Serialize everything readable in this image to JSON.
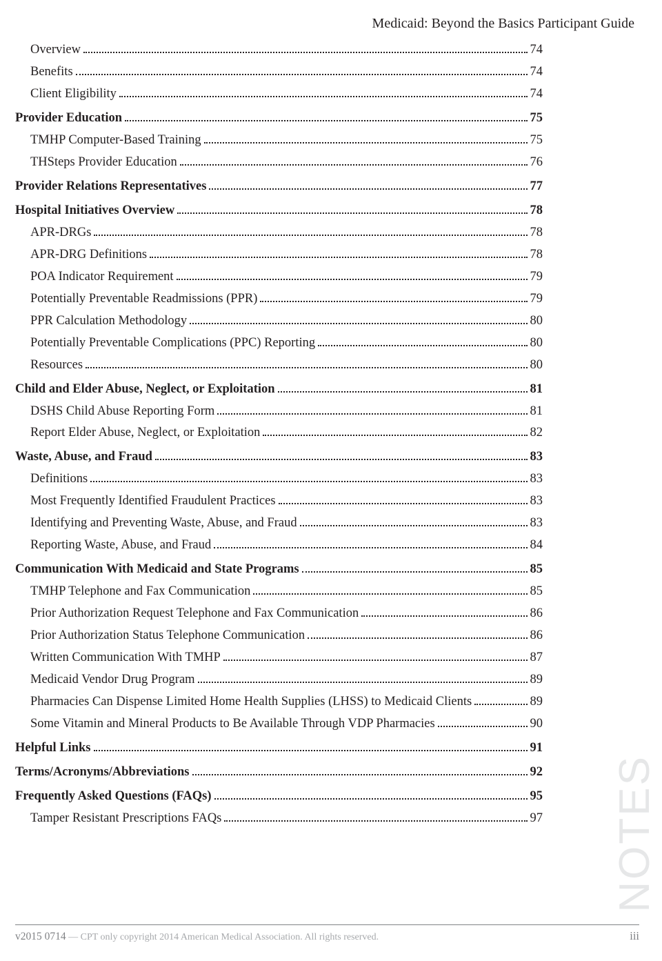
{
  "header_title": "Medicaid: Beyond the Basics Participant Guide",
  "notes_label": "NOTES",
  "footer": {
    "version": "v2015 0714",
    "separator": " — ",
    "copyright": "CPT only copyright 2014 American Medical Association. All rights reserved.",
    "page_num": "iii"
  },
  "toc": [
    {
      "level": 1,
      "label": "Overview",
      "page": "74",
      "group_top": false
    },
    {
      "level": 1,
      "label": "Benefits",
      "page": "74",
      "group_top": false
    },
    {
      "level": 1,
      "label": "Client Eligibility",
      "page": "74",
      "group_top": false
    },
    {
      "level": 0,
      "label": "Provider Education",
      "page": "75",
      "group_top": true
    },
    {
      "level": 1,
      "label": "TMHP Computer-Based Training",
      "page": "75",
      "group_top": false
    },
    {
      "level": 1,
      "label": "THSteps Provider Education",
      "page": "76",
      "group_top": false
    },
    {
      "level": 0,
      "label": "Provider Relations Representatives",
      "page": "77",
      "group_top": true
    },
    {
      "level": 0,
      "label": "Hospital Initiatives Overview",
      "page": "78",
      "group_top": true
    },
    {
      "level": 1,
      "label": "APR-DRGs",
      "page": "78",
      "group_top": false
    },
    {
      "level": 1,
      "label": "APR-DRG Definitions",
      "page": "78",
      "group_top": false
    },
    {
      "level": 1,
      "label": "POA Indicator Requirement",
      "page": "79",
      "group_top": false
    },
    {
      "level": 1,
      "label": "Potentially Preventable Readmissions (PPR)",
      "page": "79",
      "group_top": false
    },
    {
      "level": 1,
      "label": "PPR Calculation Methodology",
      "page": "80",
      "group_top": false
    },
    {
      "level": 1,
      "label": "Potentially Preventable Complications (PPC) Reporting",
      "page": "80",
      "group_top": false
    },
    {
      "level": 1,
      "label": "Resources",
      "page": "80",
      "group_top": false
    },
    {
      "level": 0,
      "label": "Child and Elder Abuse, Neglect, or Exploitation",
      "page": "81",
      "group_top": true
    },
    {
      "level": 1,
      "label": "DSHS Child Abuse Reporting Form",
      "page": "81",
      "group_top": false
    },
    {
      "level": 1,
      "label": "Report Elder Abuse, Neglect, or Exploitation",
      "page": "82",
      "group_top": false
    },
    {
      "level": 0,
      "label": "Waste, Abuse, and Fraud",
      "page": "83",
      "group_top": true
    },
    {
      "level": 1,
      "label": "Definitions",
      "page": "83",
      "group_top": false
    },
    {
      "level": 1,
      "label": "Most Frequently Identified Fraudulent Practices",
      "page": "83",
      "group_top": false
    },
    {
      "level": 1,
      "label": "Identifying and Preventing Waste, Abuse, and Fraud",
      "page": "83",
      "group_top": false
    },
    {
      "level": 1,
      "label": "Reporting Waste, Abuse, and Fraud",
      "page": "84",
      "group_top": false
    },
    {
      "level": 0,
      "label": "Communication With Medicaid and State Programs",
      "page": "85",
      "group_top": true
    },
    {
      "level": 1,
      "label": "TMHP Telephone and Fax Communication",
      "page": "85",
      "group_top": false
    },
    {
      "level": 1,
      "label": "Prior Authorization Request Telephone and Fax Communication",
      "page": "86",
      "group_top": false
    },
    {
      "level": 1,
      "label": "Prior Authorization Status Telephone Communication",
      "page": "86",
      "group_top": false
    },
    {
      "level": 1,
      "label": "Written Communication With TMHP",
      "page": "87",
      "group_top": false
    },
    {
      "level": 1,
      "label": "Medicaid Vendor Drug Program",
      "page": "89",
      "group_top": false
    },
    {
      "level": 1,
      "label": "Pharmacies Can Dispense Limited Home Health Supplies (LHSS) to Medicaid Clients",
      "page": "89",
      "group_top": false
    },
    {
      "level": 1,
      "label": "Some Vitamin and Mineral Products to Be Available Through VDP Pharmacies",
      "page": "90",
      "group_top": false
    },
    {
      "level": 0,
      "label": "Helpful Links",
      "page": "91",
      "group_top": true
    },
    {
      "level": 0,
      "label": "Terms/Acronyms/Abbreviations",
      "page": "92",
      "group_top": true
    },
    {
      "level": 0,
      "label": "Frequently Asked Questions (FAQs)",
      "page": "95",
      "group_top": true
    },
    {
      "level": 1,
      "label": "Tamper Resistant Prescriptions FAQs",
      "page": "97",
      "group_top": false
    }
  ]
}
